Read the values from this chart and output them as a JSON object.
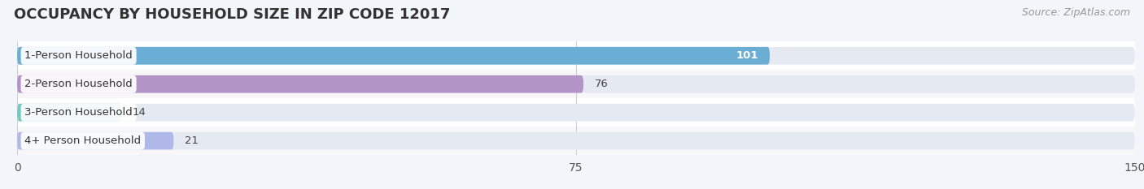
{
  "title": "OCCUPANCY BY HOUSEHOLD SIZE IN ZIP CODE 12017",
  "source": "Source: ZipAtlas.com",
  "categories": [
    "1-Person Household",
    "2-Person Household",
    "3-Person Household",
    "4+ Person Household"
  ],
  "values": [
    101,
    76,
    14,
    21
  ],
  "bar_colors": [
    "#6aaed6",
    "#b294c7",
    "#74c8be",
    "#b0b8e8"
  ],
  "xlim": [
    0,
    150
  ],
  "xticks": [
    0,
    75,
    150
  ],
  "bar_height": 0.62,
  "background_color": "#f2f5fa",
  "bar_bg_color": "#e4e9f2",
  "title_fontsize": 13,
  "source_fontsize": 9,
  "tick_fontsize": 10,
  "cat_fontsize": 9.5,
  "value_fontsize": 9.5,
  "value_threshold": 90,
  "row_bg_colors": [
    "#ffffff",
    "#f7f7f9",
    "#ffffff",
    "#f7f7f9"
  ]
}
